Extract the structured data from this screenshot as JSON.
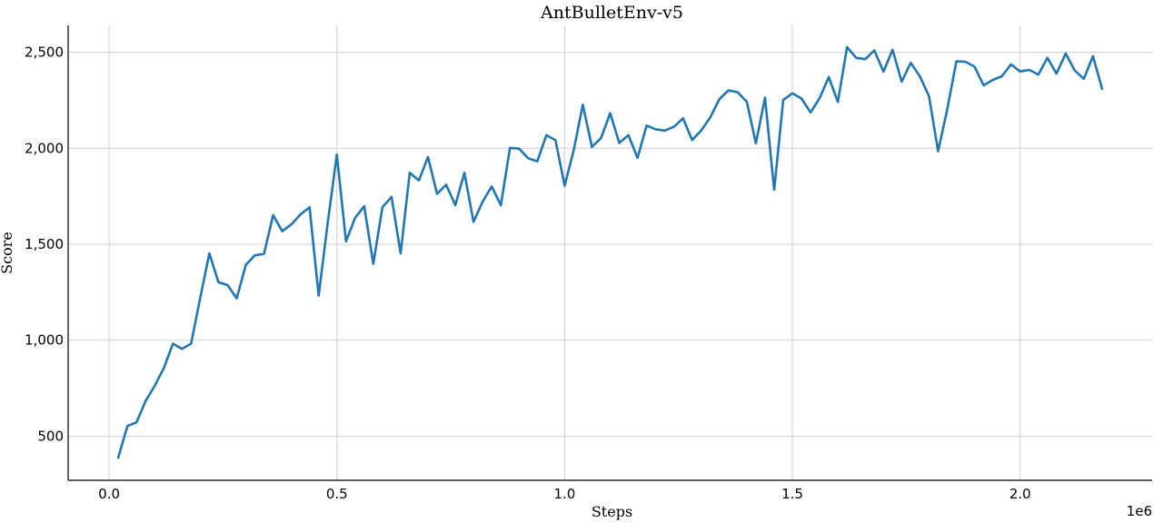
{
  "chart_data": {
    "type": "line",
    "title": "AntBulletEnv-v5",
    "xlabel": "Steps",
    "ylabel": "Score",
    "x_offset_label": "1e6",
    "xlim": [
      -0.09,
      2.29
    ],
    "ylim": [
      270,
      2640
    ],
    "xticks": [
      0.0,
      0.5,
      1.0,
      1.5,
      2.0
    ],
    "xtick_labels": [
      "0.0",
      "0.5",
      "1.0",
      "1.5",
      "2.0"
    ],
    "yticks": [
      500,
      1000,
      1500,
      2000,
      2500
    ],
    "ytick_labels": [
      "500",
      "1,000",
      "1,500",
      "2,000",
      "2,500"
    ],
    "grid": true,
    "series": [
      {
        "color": "#1f77b4",
        "x": [
          0.02,
          0.04,
          0.06,
          0.08,
          0.1,
          0.12,
          0.14,
          0.16,
          0.18,
          0.2,
          0.22,
          0.24,
          0.26,
          0.28,
          0.3,
          0.32,
          0.34,
          0.36,
          0.38,
          0.4,
          0.42,
          0.44,
          0.46,
          0.48,
          0.5,
          0.52,
          0.54,
          0.56,
          0.58,
          0.6,
          0.62,
          0.64,
          0.66,
          0.68,
          0.7,
          0.72,
          0.74,
          0.76,
          0.78,
          0.8,
          0.82,
          0.84,
          0.86,
          0.88,
          0.9,
          0.92,
          0.94,
          0.96,
          0.98,
          1.0,
          1.02,
          1.04,
          1.06,
          1.08,
          1.1,
          1.12,
          1.14,
          1.16,
          1.18,
          1.2,
          1.22,
          1.24,
          1.26,
          1.28,
          1.3,
          1.32,
          1.34,
          1.36,
          1.38,
          1.4,
          1.42,
          1.44,
          1.46,
          1.48,
          1.5,
          1.52,
          1.54,
          1.56,
          1.58,
          1.6,
          1.62,
          1.64,
          1.66,
          1.68,
          1.7,
          1.72,
          1.74,
          1.76,
          1.78,
          1.8,
          1.82,
          1.84,
          1.86,
          1.88,
          1.9,
          1.92,
          1.94,
          1.96,
          1.98,
          2.0,
          2.02,
          2.04,
          2.06,
          2.08,
          2.1,
          2.12,
          2.14,
          2.16,
          2.18
        ],
        "y": [
          388,
          553,
          572,
          683,
          762,
          855,
          982,
          955,
          982,
          1222,
          1452,
          1302,
          1287,
          1218,
          1392,
          1442,
          1450,
          1652,
          1568,
          1603,
          1655,
          1692,
          1232,
          1613,
          1967,
          1515,
          1637,
          1698,
          1398,
          1693,
          1747,
          1452,
          1872,
          1832,
          1955,
          1763,
          1810,
          1704,
          1872,
          1617,
          1722,
          1801,
          1703,
          2002,
          1998,
          1948,
          1932,
          2068,
          2042,
          1805,
          1990,
          2227,
          2007,
          2054,
          2183,
          2028,
          2068,
          1950,
          2118,
          2099,
          2092,
          2112,
          2156,
          2043,
          2093,
          2162,
          2257,
          2302,
          2292,
          2242,
          2026,
          2264,
          1784,
          2252,
          2286,
          2259,
          2187,
          2262,
          2371,
          2241,
          2527,
          2471,
          2464,
          2510,
          2399,
          2513,
          2347,
          2445,
          2374,
          2271,
          1985,
          2201,
          2453,
          2451,
          2425,
          2328,
          2356,
          2375,
          2437,
          2400,
          2408,
          2384,
          2471,
          2389,
          2494,
          2405,
          2362,
          2480,
          2310
        ]
      }
    ]
  }
}
